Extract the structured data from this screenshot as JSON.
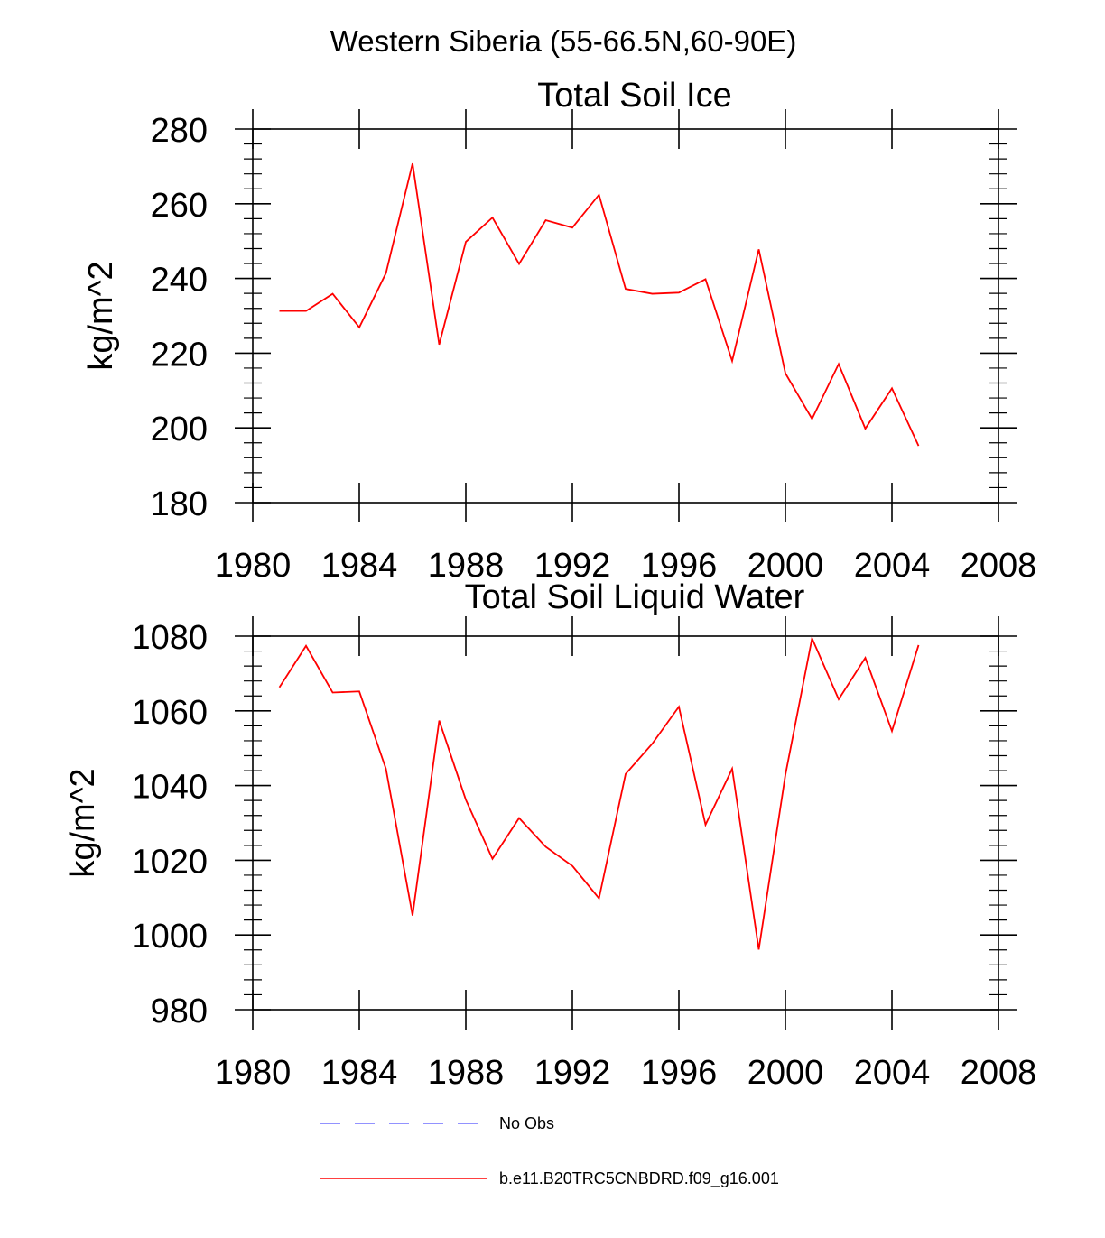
{
  "figure_title": "Western Siberia (55-66.5N,60-90E)",
  "legend": {
    "entries": [
      {
        "label": "No Obs",
        "color": "#6f6fff",
        "style": "dashed"
      },
      {
        "label": "b.e11.B20TRC5CNBDRD.f09_g16.001",
        "color": "#ff0000",
        "style": "solid"
      }
    ]
  },
  "chart_data": [
    {
      "type": "line",
      "title": "Total Soil Ice",
      "xlabel": "",
      "ylabel": "kg/m^2",
      "xlim": [
        1980,
        2008
      ],
      "ylim": [
        180,
        280
      ],
      "x_ticks": [
        1980,
        1984,
        1988,
        1992,
        1996,
        2000,
        2004,
        2008
      ],
      "y_ticks": [
        180,
        200,
        220,
        240,
        260,
        280
      ],
      "series": [
        {
          "name": "b.e11.B20TRC5CNBDRD.f09_g16.001",
          "color": "#ff0000",
          "x": [
            1981,
            1982,
            1983,
            1984,
            1985,
            1986,
            1987,
            1988,
            1989,
            1990,
            1991,
            1992,
            1993,
            1994,
            1995,
            1996,
            1997,
            1998,
            1999,
            2000,
            2001,
            2002,
            2003,
            2004,
            2005
          ],
          "y": [
            231.3,
            231.3,
            235.9,
            226.9,
            241.4,
            270.8,
            222.3,
            249.8,
            256.3,
            243.9,
            255.6,
            253.6,
            262.4,
            237.2,
            235.9,
            236.2,
            239.8,
            217.9,
            247.8,
            214.6,
            202.4,
            217.1,
            199.8,
            210.6,
            195.2
          ]
        }
      ]
    },
    {
      "type": "line",
      "title": "Total Soil Liquid Water",
      "xlabel": "",
      "ylabel": "kg/m^2",
      "xlim": [
        1980,
        2008
      ],
      "ylim": [
        980,
        1080
      ],
      "x_ticks": [
        1980,
        1984,
        1988,
        1992,
        1996,
        2000,
        2004,
        2008
      ],
      "y_ticks": [
        980,
        1000,
        1020,
        1040,
        1060,
        1080
      ],
      "series": [
        {
          "name": "b.e11.B20TRC5CNBDRD.f09_g16.001",
          "color": "#ff0000",
          "x": [
            1981,
            1982,
            1983,
            1984,
            1985,
            1986,
            1987,
            1988,
            1989,
            1990,
            1991,
            1992,
            1993,
            1994,
            1995,
            1996,
            1997,
            1998,
            1999,
            2000,
            2001,
            2002,
            2003,
            2004,
            2005
          ],
          "y": [
            1066.3,
            1077.4,
            1064.9,
            1065.2,
            1044.5,
            1005.2,
            1057.4,
            1036.2,
            1020.4,
            1031.3,
            1023.6,
            1018.5,
            1009.8,
            1043.1,
            1051.2,
            1061.1,
            1029.5,
            1044.5,
            996.1,
            1042.9,
            1079.4,
            1063.1,
            1074.2,
            1054.6,
            1077.6
          ]
        }
      ]
    }
  ]
}
